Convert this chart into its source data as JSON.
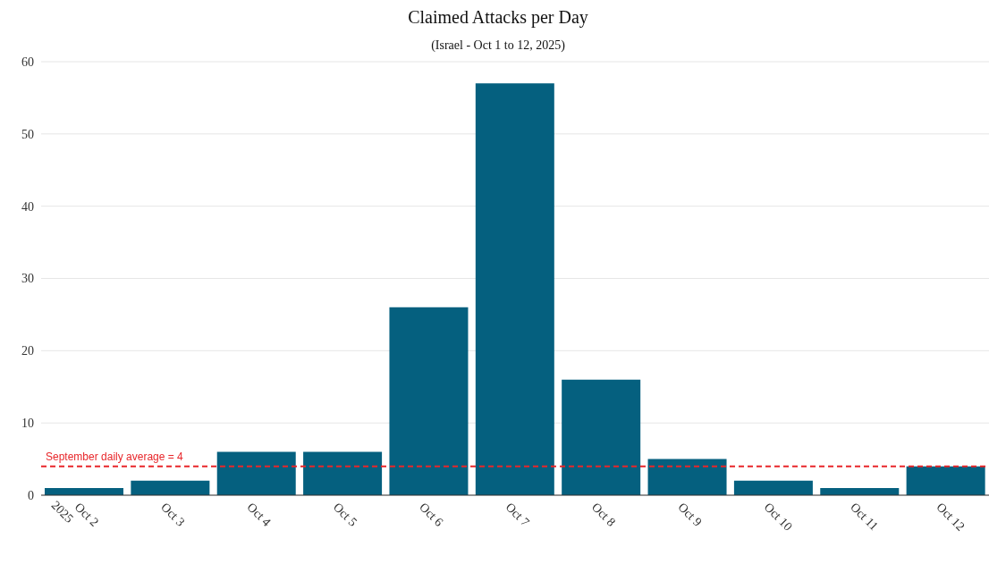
{
  "chart_data": {
    "type": "bar",
    "title": "Claimed Attacks per Day",
    "subtitle": "(Israel - Oct 1 to 12, 2025)",
    "categories": [
      "Oct 2\n2025",
      "Oct 3",
      "Oct 4",
      "Oct 5",
      "Oct 6",
      "Oct 7",
      "Oct 8",
      "Oct 9",
      "Oct 10",
      "Oct 11",
      "Oct 12"
    ],
    "values": [
      1,
      2,
      6,
      6,
      26,
      57,
      16,
      5,
      2,
      1,
      4
    ],
    "color": "#05607f",
    "ylim": [
      0,
      60
    ],
    "yticks": [
      0,
      10,
      20,
      30,
      40,
      50,
      60
    ],
    "grid": "y",
    "ref_lines": [
      {
        "axis": "y",
        "value": 4,
        "label": "September daily average = 4",
        "color": "#e8262a",
        "line_style": "dashed"
      }
    ]
  }
}
